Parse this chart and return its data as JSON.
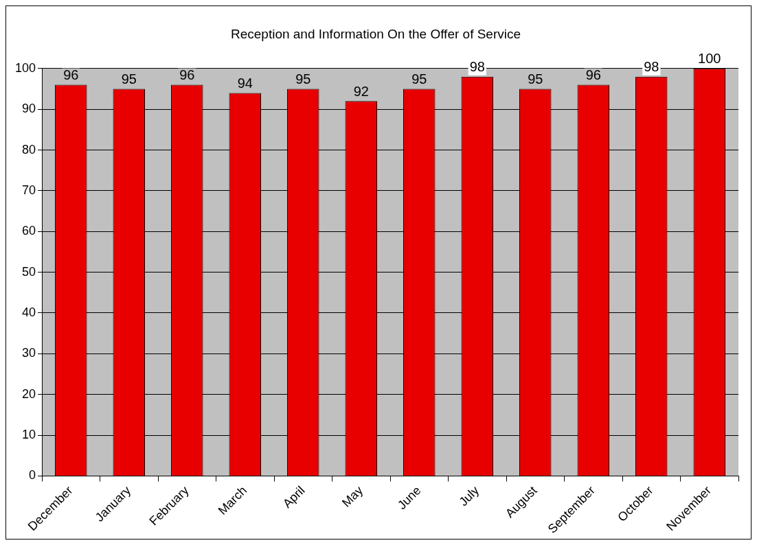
{
  "chart_data": {
    "type": "bar",
    "title": "Reception and Information On the Offer of Service",
    "categories": [
      "December",
      "January",
      "February",
      "March",
      "April",
      "May",
      "June",
      "July",
      "August",
      "September",
      "October",
      "November"
    ],
    "values": [
      96,
      95,
      96,
      94,
      95,
      92,
      95,
      98,
      95,
      96,
      98,
      100
    ],
    "color": "#e80000",
    "ylim": [
      0,
      100
    ],
    "yticks": [
      0,
      10,
      20,
      30,
      40,
      50,
      60,
      70,
      80,
      90,
      100
    ],
    "grid": "y",
    "data_labels": true
  }
}
